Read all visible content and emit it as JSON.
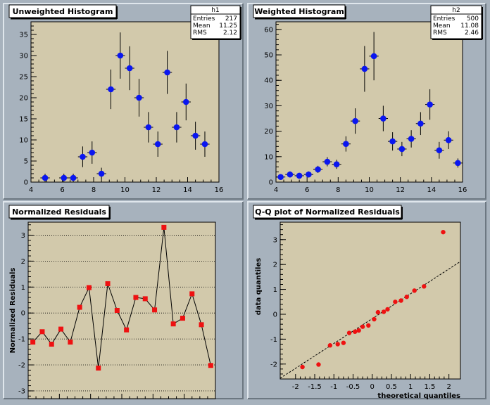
{
  "colors": {
    "background": "#a7b2bd",
    "plot_bg": "#d2c9ab",
    "pad_border_light": "#dfe6ec",
    "pad_border_dark": "#6c7781",
    "blue_marker": "#0a16f0",
    "red_marker": "#ee1111"
  },
  "chart_data": [
    {
      "type": "scatter",
      "title": "Unweighted Histogram",
      "stats": {
        "name": "h1",
        "rows": [
          {
            "label": "Entries",
            "value": "217"
          },
          {
            "label": "Mean",
            "value": "11.25"
          },
          {
            "label": "RMS",
            "value": "2.12"
          }
        ]
      },
      "xlim": [
        4,
        16
      ],
      "ylim": [
        0,
        38
      ],
      "xticks": [
        4,
        6,
        8,
        10,
        12,
        14,
        16
      ],
      "yticks": [
        0,
        5,
        10,
        15,
        20,
        25,
        30,
        35
      ],
      "xbin_width": 0.6,
      "points": [
        {
          "x": 4.9,
          "y": 1,
          "err": 1
        },
        {
          "x": 6.1,
          "y": 1,
          "err": 1
        },
        {
          "x": 6.7,
          "y": 1,
          "err": 1
        },
        {
          "x": 7.3,
          "y": 6,
          "err": 2.45
        },
        {
          "x": 7.9,
          "y": 7,
          "err": 2.65
        },
        {
          "x": 8.5,
          "y": 2,
          "err": 1.41
        },
        {
          "x": 9.1,
          "y": 22,
          "err": 4.69
        },
        {
          "x": 9.7,
          "y": 30,
          "err": 5.48
        },
        {
          "x": 10.3,
          "y": 27,
          "err": 5.2
        },
        {
          "x": 10.9,
          "y": 20,
          "err": 4.47
        },
        {
          "x": 11.5,
          "y": 13,
          "err": 3.61
        },
        {
          "x": 12.1,
          "y": 9,
          "err": 3
        },
        {
          "x": 12.7,
          "y": 26,
          "err": 5.1
        },
        {
          "x": 13.3,
          "y": 13,
          "err": 3.61
        },
        {
          "x": 13.9,
          "y": 19,
          "err": 4.36
        },
        {
          "x": 14.5,
          "y": 11,
          "err": 3.32
        },
        {
          "x": 15.1,
          "y": 9,
          "err": 3
        }
      ]
    },
    {
      "type": "scatter",
      "title": "Weighted Histogram",
      "stats": {
        "name": "h2",
        "rows": [
          {
            "label": "Entries",
            "value": "500"
          },
          {
            "label": "Mean",
            "value": "11.08"
          },
          {
            "label": "RMS",
            "value": "2.46"
          }
        ]
      },
      "xlim": [
        4,
        16
      ],
      "ylim": [
        0,
        63
      ],
      "xticks": [
        4,
        6,
        8,
        10,
        12,
        14,
        16
      ],
      "yticks": [
        0,
        10,
        20,
        30,
        40,
        50,
        60
      ],
      "xbin_width": 0.6,
      "points": [
        {
          "x": 4.3,
          "y": 2,
          "err": 1
        },
        {
          "x": 4.9,
          "y": 3,
          "err": 1.2
        },
        {
          "x": 5.5,
          "y": 2.5,
          "err": 1.1
        },
        {
          "x": 6.1,
          "y": 3,
          "err": 1.2
        },
        {
          "x": 6.7,
          "y": 5,
          "err": 1.4
        },
        {
          "x": 7.3,
          "y": 8,
          "err": 1.8
        },
        {
          "x": 7.9,
          "y": 7,
          "err": 1.8
        },
        {
          "x": 8.5,
          "y": 15,
          "err": 3
        },
        {
          "x": 9.1,
          "y": 24,
          "err": 5
        },
        {
          "x": 9.7,
          "y": 44.5,
          "err": 9
        },
        {
          "x": 10.3,
          "y": 49.5,
          "err": 9.5
        },
        {
          "x": 10.9,
          "y": 25,
          "err": 5
        },
        {
          "x": 11.5,
          "y": 16,
          "err": 3.6
        },
        {
          "x": 12.1,
          "y": 13,
          "err": 2.8
        },
        {
          "x": 12.7,
          "y": 17,
          "err": 3.4
        },
        {
          "x": 13.3,
          "y": 23,
          "err": 4.5
        },
        {
          "x": 13.9,
          "y": 30.5,
          "err": 6
        },
        {
          "x": 14.5,
          "y": 12.5,
          "err": 3.3
        },
        {
          "x": 15.1,
          "y": 16.5,
          "err": 3.5
        },
        {
          "x": 15.7,
          "y": 7.5,
          "err": 1.8
        }
      ]
    },
    {
      "type": "line",
      "title": "Normalized Residuals",
      "ylabel": "Normalized Residuals",
      "xlim": [
        4,
        16
      ],
      "ylim": [
        -3.3,
        3.5
      ],
      "xticks": [
        4,
        6,
        8,
        10,
        12,
        14,
        16
      ],
      "yticks": [
        -3,
        -2,
        -1,
        0,
        1,
        2,
        3
      ],
      "grid": "horizontal dotted",
      "points": [
        {
          "x": 4.3,
          "y": -1.12
        },
        {
          "x": 4.9,
          "y": -0.72
        },
        {
          "x": 5.5,
          "y": -1.2
        },
        {
          "x": 6.1,
          "y": -0.62
        },
        {
          "x": 6.7,
          "y": -1.12
        },
        {
          "x": 7.3,
          "y": 0.22
        },
        {
          "x": 7.9,
          "y": 0.98
        },
        {
          "x": 8.5,
          "y": -2.12
        },
        {
          "x": 9.1,
          "y": 1.13
        },
        {
          "x": 9.7,
          "y": 0.1
        },
        {
          "x": 10.3,
          "y": -0.65
        },
        {
          "x": 10.9,
          "y": 0.6
        },
        {
          "x": 11.5,
          "y": 0.55
        },
        {
          "x": 12.1,
          "y": 0.12
        },
        {
          "x": 12.7,
          "y": 3.3
        },
        {
          "x": 13.3,
          "y": -0.42
        },
        {
          "x": 13.9,
          "y": -0.2
        },
        {
          "x": 14.5,
          "y": 0.74
        },
        {
          "x": 15.1,
          "y": -0.45
        },
        {
          "x": 15.7,
          "y": -2.02
        }
      ]
    },
    {
      "type": "scatter",
      "title": "Q-Q plot of Normalized Residuals",
      "xlabel": "theoretical quantiles",
      "ylabel": "data quantiles",
      "xlim": [
        -2.4,
        2.3
      ],
      "ylim": [
        -2.6,
        3.7
      ],
      "xticks": [
        -2,
        -1.5,
        -1,
        -0.5,
        0,
        0.5,
        1,
        1.5,
        2
      ],
      "yticks": [
        -2,
        -1,
        0,
        1,
        2,
        3
      ],
      "reference_line": {
        "x1": -2.4,
        "y1": -2.57,
        "x2": 2.3,
        "y2": 2.12
      },
      "points": [
        {
          "x": -1.82,
          "y": -2.12
        },
        {
          "x": -1.4,
          "y": -2.02
        },
        {
          "x": -1.1,
          "y": -1.25
        },
        {
          "x": -0.9,
          "y": -1.2
        },
        {
          "x": -0.75,
          "y": -1.15
        },
        {
          "x": -0.6,
          "y": -0.75
        },
        {
          "x": -0.45,
          "y": -0.7
        },
        {
          "x": -0.35,
          "y": -0.65
        },
        {
          "x": -0.25,
          "y": -0.5
        },
        {
          "x": -0.1,
          "y": -0.45
        },
        {
          "x": 0.05,
          "y": -0.2
        },
        {
          "x": 0.15,
          "y": 0.08
        },
        {
          "x": 0.3,
          "y": 0.1
        },
        {
          "x": 0.4,
          "y": 0.2
        },
        {
          "x": 0.6,
          "y": 0.5
        },
        {
          "x": 0.75,
          "y": 0.55
        },
        {
          "x": 0.9,
          "y": 0.7
        },
        {
          "x": 1.1,
          "y": 0.95
        },
        {
          "x": 1.35,
          "y": 1.12
        },
        {
          "x": 1.85,
          "y": 3.3
        }
      ]
    }
  ]
}
